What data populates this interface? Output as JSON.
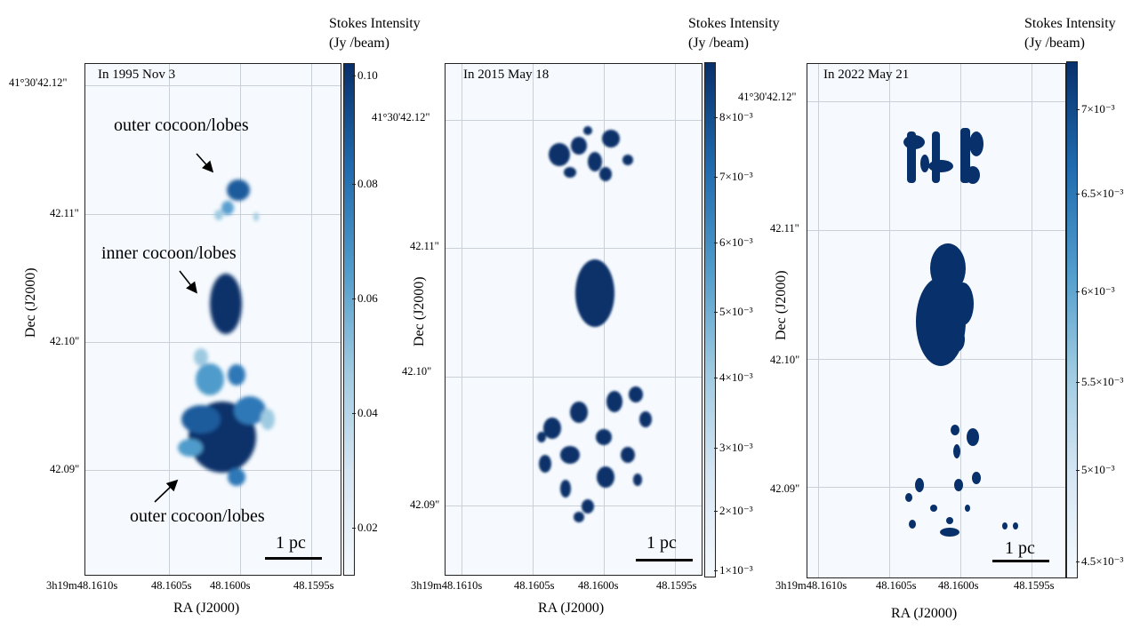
{
  "colorbar_title_line1": "Stokes Intensity",
  "colorbar_title_line2": "(Jy /beam)",
  "x_axis_label": "RA  (J2000)",
  "y_axis_label": "Dec  (J2000)",
  "scale_label": "1 pc",
  "colors": {
    "cmap_low": "#f6fafe",
    "cmap_high": "#08306b",
    "grid": "#c9d0d8"
  },
  "panel1": {
    "epoch": "In 1995 Nov 3",
    "x_ticks": [
      "3h19m48.1610s",
      "48.1605s",
      "48.1600s",
      "48.1595s"
    ],
    "y_ticks": [
      "41°30'42.12\"",
      "42.11\"",
      "42.10\"",
      "42.09\""
    ],
    "colorbar_ticks": [
      "0.10",
      "0.08",
      "0.06",
      "0.04",
      "0.02"
    ],
    "annotations": {
      "outer_top": "outer cocoon/lobes",
      "inner": "inner cocoon/lobes",
      "outer_bottom": "outer cocoon/lobes"
    }
  },
  "panel2": {
    "epoch": "In 2015 May 18",
    "x_ticks": [
      "3h19m48.1610s",
      "48.1605s",
      "48.1600s",
      "48.1595s"
    ],
    "y_ticks": [
      "41°30'42.12\"",
      "42.11\"",
      "42.10\"",
      "42.09\""
    ],
    "colorbar_ticks": [
      "8×10⁻³",
      "7×10⁻³",
      "6×10⁻³",
      "5×10⁻³",
      "4×10⁻³",
      "3×10⁻³",
      "2×10⁻³",
      "1×10⁻³"
    ]
  },
  "panel3": {
    "epoch": "In 2022 May 21",
    "x_ticks": [
      "3h19m48.1610s",
      "48.1605s",
      "48.1600s",
      "48.1595s"
    ],
    "y_ticks": [
      "41°30'42.12\"",
      "42.11\"",
      "42.10\"",
      "42.09\""
    ],
    "colorbar_ticks": [
      "7×10⁻³",
      "6.5×10⁻³",
      "6×10⁻³",
      "5.5×10⁻³",
      "5×10⁻³",
      "4.5×10⁻³"
    ]
  }
}
